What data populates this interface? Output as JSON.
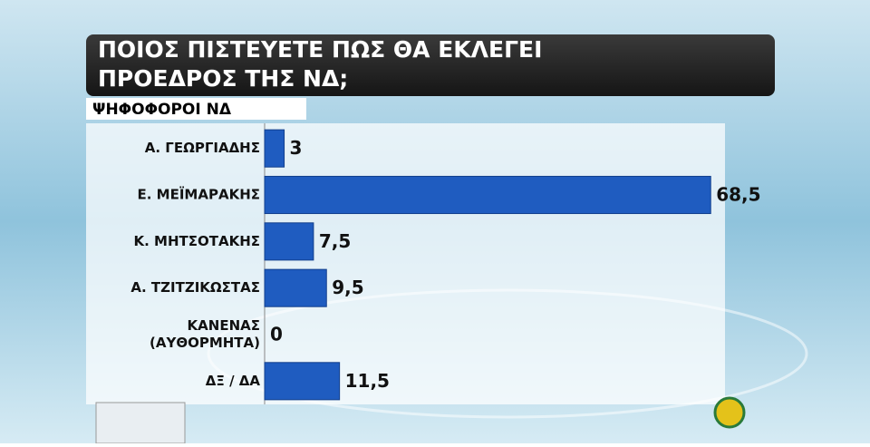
{
  "chart_data": {
    "type": "bar",
    "orientation": "horizontal",
    "title": "ΠΟΙΟΣ ΠΙΣΤΕΥΕΤΕ ΠΩΣ ΘΑ ΕΚΛΕΓΕΙ ΠΡΟΕΔΡΟΣ ΤΗΣ ΝΔ;",
    "subtitle": "ΨΗΦΟΦΟΡΟΙ ΝΔ",
    "categories": [
      "Α. ΓΕΩΡΓΙΑΔΗΣ",
      "Ε. ΜΕΪΜΑΡΑΚΗΣ",
      "Κ. ΜΗΤΣΟΤΑΚΗΣ",
      "Α. ΤΖΙΤΖΙΚΩΣΤΑΣ",
      "ΚΑΝΕΝΑΣ (ΑΥΘΟΡΜΗΤΑ)",
      "ΔΞ / ΔΑ"
    ],
    "values": [
      3,
      68.5,
      7.5,
      9.5,
      0,
      11.5
    ],
    "value_labels": [
      "3",
      "68,5",
      "7,5",
      "9,5",
      "0",
      "11,5"
    ],
    "color": "#1f5cc0",
    "xlim": [
      0,
      70
    ]
  }
}
